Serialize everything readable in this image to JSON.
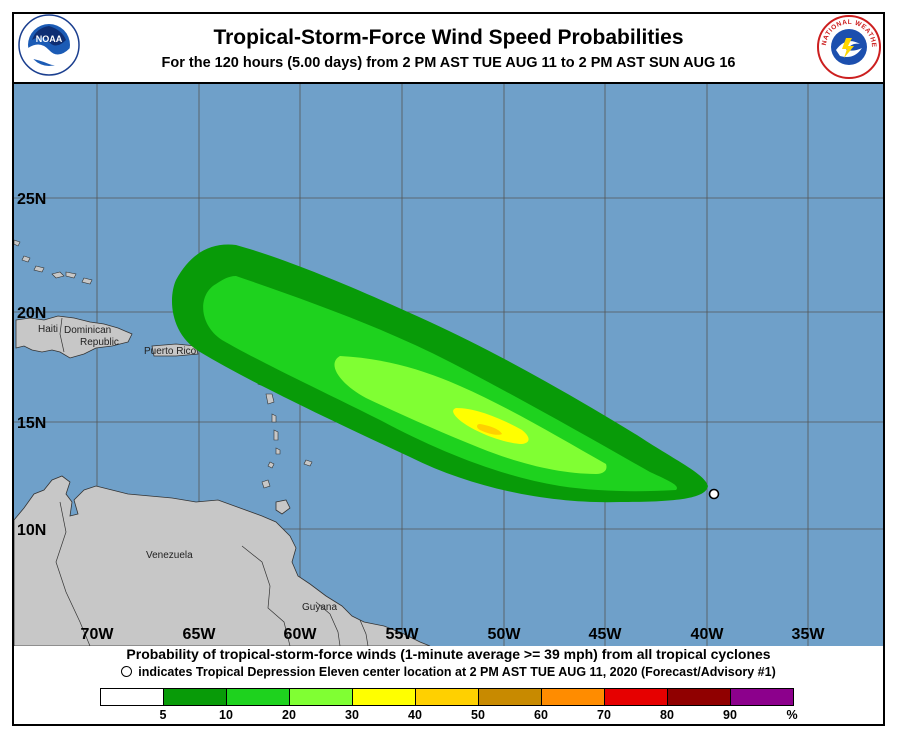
{
  "header": {
    "title": "Tropical-Storm-Force Wind Speed Probabilities",
    "subtitle": "For the 120 hours (5.00 days) from 2 PM AST TUE AUG 11 to 2 PM AST SUN AUG 16",
    "left_logo": {
      "icon": "noaa-logo",
      "text": "NOAA"
    },
    "right_logo": {
      "icon": "national-weather-service-logo",
      "text": "NATIONAL WEATHER SERVICE"
    }
  },
  "map": {
    "ocean_color": "#6fa0c9",
    "land_color": "#c7c7c7",
    "lat_labels": [
      "25N",
      "20N",
      "15N",
      "10N"
    ],
    "lon_labels": [
      "70W",
      "65W",
      "60W",
      "55W",
      "50W",
      "45W",
      "40W",
      "35W"
    ],
    "place_labels": {
      "haiti": "Haiti",
      "dominican_republic_1": "Dominican",
      "dominican_republic_2": "Republic",
      "puerto_rico": "Puerto Rico",
      "venezuela": "Venezuela",
      "guyana": "Guyana"
    },
    "storm_center": {
      "lat": 11.5,
      "lon": 39.6
    },
    "probability_zones": [
      {
        "range": "5-10%",
        "color": "#089b08"
      },
      {
        "range": "10-20%",
        "color": "#1ed21e"
      },
      {
        "range": "20-30%",
        "color": "#80ff33"
      },
      {
        "range": "30-40%",
        "color": "#ffff00"
      },
      {
        "range": "40-50%",
        "color": "#ffd000"
      }
    ]
  },
  "footer": {
    "line1": "Probability of tropical-storm-force winds (1-minute average >= 39 mph) from all tropical cyclones",
    "line2": "indicates Tropical Depression Eleven center location at 2 PM AST TUE AUG 11, 2020 (Forecast/Advisory #1)"
  },
  "legend": {
    "colors": [
      "#ffffff",
      "#089b08",
      "#1ed21e",
      "#80ff33",
      "#ffff00",
      "#ffd000",
      "#c88a00",
      "#ff8c00",
      "#e60000",
      "#900000",
      "#8c008c"
    ],
    "labels": [
      "5",
      "10",
      "20",
      "30",
      "40",
      "50",
      "60",
      "70",
      "80",
      "90",
      "%"
    ]
  }
}
